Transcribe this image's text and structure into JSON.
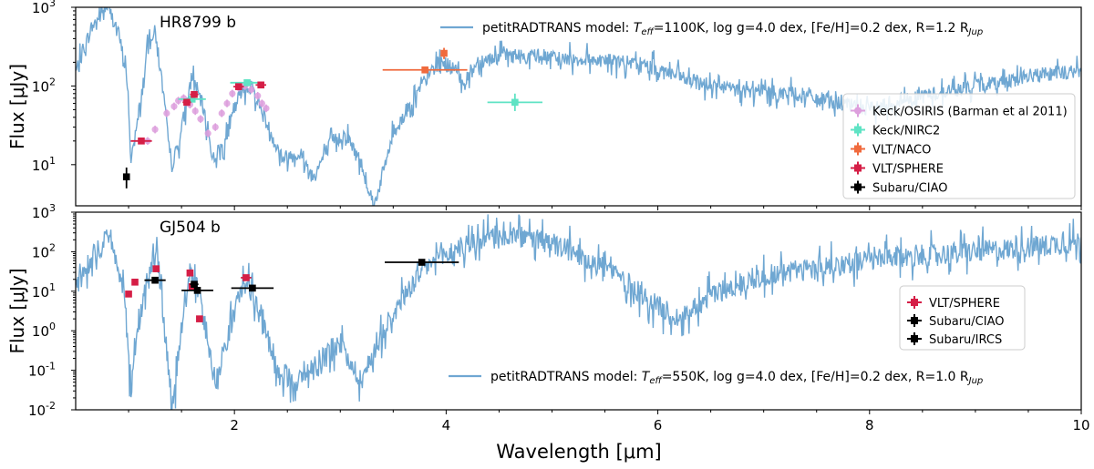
{
  "figure": {
    "xlabel": "Wavelength [μm]"
  },
  "colors": {
    "model": "#6fa7d2",
    "keck_osiris": "#dd9fdd",
    "keck_nirc2": "#5fe3c4",
    "vlt_naco": "#f06a3d",
    "vlt_sphere": "#d51e46",
    "subaru": "#000000"
  },
  "chart_data": [
    {
      "type": "line",
      "title": "HR8799 b",
      "xlabel": "Wavelength [μm]",
      "ylabel": "Flux [μJy]",
      "yscale": "log",
      "xlim": [
        0.5,
        10
      ],
      "ylim": [
        3,
        1000
      ],
      "x_ticks": [
        2,
        4,
        6,
        8,
        10
      ],
      "y_ticks": [
        "10^1",
        "10^2",
        "10^3"
      ],
      "legend_position": "right",
      "model": {
        "label_prefix": "petitRADTRANS model:",
        "label_math": "T_eff=1100K",
        "label_rest": ", log g=4.0 dex, [Fe/H]=0.2 dex, R=1.2 R",
        "label_sub": "Jup",
        "spectrum": [
          [
            0.5,
            150
          ],
          [
            0.65,
            550
          ],
          [
            0.8,
            1050
          ],
          [
            0.9,
            500
          ],
          [
            0.98,
            150
          ],
          [
            1.02,
            12
          ],
          [
            1.08,
            30
          ],
          [
            1.2,
            450
          ],
          [
            1.25,
            480
          ],
          [
            1.33,
            80
          ],
          [
            1.4,
            9
          ],
          [
            1.48,
            20
          ],
          [
            1.6,
            140
          ],
          [
            1.7,
            55
          ],
          [
            1.8,
            12
          ],
          [
            1.9,
            18
          ],
          [
            2.05,
            80
          ],
          [
            2.15,
            110
          ],
          [
            2.28,
            40
          ],
          [
            2.45,
            12
          ],
          [
            2.6,
            14
          ],
          [
            2.75,
            7
          ],
          [
            2.9,
            18
          ],
          [
            3.05,
            25
          ],
          [
            3.2,
            10
          ],
          [
            3.32,
            3
          ],
          [
            3.5,
            25
          ],
          [
            3.7,
            70
          ],
          [
            3.85,
            150
          ],
          [
            3.95,
            210
          ],
          [
            4.08,
            160
          ],
          [
            4.18,
            110
          ],
          [
            4.3,
            210
          ],
          [
            4.6,
            245
          ],
          [
            5.0,
            225
          ],
          [
            5.5,
            215
          ],
          [
            6.0,
            170
          ],
          [
            6.3,
            115
          ],
          [
            6.8,
            85
          ],
          [
            7.3,
            80
          ],
          [
            7.7,
            60
          ],
          [
            8.0,
            50
          ],
          [
            8.4,
            70
          ],
          [
            9.0,
            100
          ],
          [
            9.6,
            140
          ],
          [
            10.0,
            155
          ]
        ],
        "noise_dex": 0.12
      },
      "series": [
        {
          "name": "Keck/OSIRIS (Barman et al 2011)",
          "color_key": "keck_osiris",
          "points": [
            [
              1.18,
              20
            ],
            [
              1.25,
              28
            ],
            [
              1.36,
              45
            ],
            [
              1.43,
              55
            ],
            [
              1.47,
              65
            ],
            [
              1.52,
              70
            ],
            [
              1.58,
              58
            ],
            [
              1.63,
              48
            ],
            [
              1.68,
              38
            ],
            [
              1.75,
              25
            ],
            [
              1.82,
              30
            ],
            [
              1.88,
              45
            ],
            [
              1.93,
              60
            ],
            [
              1.98,
              80
            ],
            [
              2.04,
              95
            ],
            [
              2.1,
              100
            ],
            [
              2.16,
              90
            ],
            [
              2.22,
              75
            ],
            [
              2.26,
              60
            ],
            [
              2.3,
              52
            ]
          ]
        },
        {
          "name": "Keck/NIRC2",
          "color_key": "keck_nirc2",
          "points": [
            {
              "x": 1.6,
              "y": 68,
              "xerr": 0.13
            },
            {
              "x": 2.12,
              "y": 110,
              "xerr": 0.16
            },
            {
              "x": 4.65,
              "y": 62,
              "xerr": 0.26,
              "ylo": 48,
              "yhi": 80
            }
          ]
        },
        {
          "name": "VLT/NACO",
          "color_key": "vlt_naco",
          "points": [
            {
              "x": 3.8,
              "y": 160,
              "xerr": 0.4
            },
            {
              "x": 3.98,
              "y": 260,
              "xerr": 0.03,
              "ylo": 220,
              "yhi": 305
            }
          ]
        },
        {
          "name": "VLT/SPHERE",
          "color_key": "vlt_sphere",
          "points": [
            {
              "x": 1.12,
              "y": 20,
              "xerr": 0.1
            },
            {
              "x": 1.55,
              "y": 62,
              "xerr": 0.04
            },
            {
              "x": 1.62,
              "y": 78,
              "xerr": 0.04
            },
            {
              "x": 2.04,
              "y": 98,
              "xerr": 0.05
            },
            {
              "x": 2.25,
              "y": 103,
              "xerr": 0.05
            }
          ]
        },
        {
          "name": "Subaru/CIAO",
          "color_key": "subaru",
          "points": [
            {
              "x": 0.98,
              "y": 7,
              "xerr": 0.0,
              "ylo": 5,
              "yhi": 9.2
            }
          ]
        }
      ],
      "legend": [
        "Keck/OSIRIS (Barman et al 2011)",
        "Keck/NIRC2",
        "VLT/NACO",
        "VLT/SPHERE",
        "Subaru/CIAO"
      ]
    },
    {
      "type": "line",
      "title": "GJ504 b",
      "xlabel": "Wavelength [μm]",
      "ylabel": "Flux [μJy]",
      "yscale": "log",
      "xlim": [
        0.5,
        10
      ],
      "ylim": [
        0.01,
        1000
      ],
      "x_ticks": [
        2,
        4,
        6,
        8,
        10
      ],
      "y_ticks": [
        "10^-2",
        "10^-1",
        "10^0",
        "10^1",
        "10^2",
        "10^3"
      ],
      "legend_position": "right",
      "model": {
        "label_prefix": "petitRADTRANS model:",
        "label_math": "T_eff=550K",
        "label_rest": ", log g=4.0 dex, [Fe/H]=0.2 dex, R=1.0 R",
        "label_sub": "Jup",
        "spectrum": [
          [
            0.5,
            12
          ],
          [
            0.65,
            80
          ],
          [
            0.8,
            200
          ],
          [
            0.9,
            60
          ],
          [
            0.98,
            3
          ],
          [
            1.02,
            0.02
          ],
          [
            1.08,
            1
          ],
          [
            1.2,
            40
          ],
          [
            1.27,
            80
          ],
          [
            1.35,
            0.5
          ],
          [
            1.42,
            0.01
          ],
          [
            1.48,
            0.5
          ],
          [
            1.58,
            30
          ],
          [
            1.65,
            12
          ],
          [
            1.72,
            1.5
          ],
          [
            1.82,
            0.05
          ],
          [
            1.95,
            1
          ],
          [
            2.08,
            15
          ],
          [
            2.15,
            12
          ],
          [
            2.25,
            2
          ],
          [
            2.4,
            0.1
          ],
          [
            2.6,
            0.05
          ],
          [
            2.8,
            0.2
          ],
          [
            3.0,
            0.5
          ],
          [
            3.2,
            0.05
          ],
          [
            3.35,
            0.5
          ],
          [
            3.5,
            3
          ],
          [
            3.8,
            40
          ],
          [
            4.1,
            120
          ],
          [
            4.5,
            260
          ],
          [
            4.8,
            220
          ],
          [
            5.2,
            100
          ],
          [
            5.6,
            30
          ],
          [
            5.9,
            6
          ],
          [
            6.2,
            2
          ],
          [
            6.5,
            8
          ],
          [
            7.0,
            25
          ],
          [
            7.5,
            40
          ],
          [
            8.0,
            60
          ],
          [
            8.5,
            80
          ],
          [
            9.0,
            100
          ],
          [
            9.5,
            130
          ],
          [
            10.0,
            180
          ]
        ],
        "noise_dex": 0.35
      },
      "series": [
        {
          "name": "VLT/SPHERE",
          "color_key": "vlt_sphere",
          "points": [
            {
              "x": 1.0,
              "y": 8.5,
              "xerr": 0.0
            },
            {
              "x": 1.06,
              "y": 17,
              "xerr": 0.0
            },
            {
              "x": 1.26,
              "y": 37,
              "xerr": 0.0
            },
            {
              "x": 1.58,
              "y": 29,
              "xerr": 0.0
            },
            {
              "x": 1.6,
              "y": 13,
              "xerr": 0.0
            },
            {
              "x": 1.67,
              "y": 2,
              "xerr": 0.0
            },
            {
              "x": 2.11,
              "y": 22,
              "xerr": 0.05
            }
          ]
        },
        {
          "name": "Subaru/CIAO",
          "color_key": "subaru",
          "points": [
            {
              "x": 1.25,
              "y": 19,
              "xerr": 0.1
            },
            {
              "x": 1.62,
              "y": 15,
              "xerr": 0.04
            }
          ]
        },
        {
          "name": "Subaru/IRCS",
          "color_key": "subaru",
          "points": [
            {
              "x": 1.65,
              "y": 10.5,
              "xerr": 0.15
            },
            {
              "x": 2.17,
              "y": 12,
              "xerr": 0.2
            },
            {
              "x": 3.77,
              "y": 54,
              "xerr": 0.35
            }
          ]
        }
      ],
      "legend": [
        "VLT/SPHERE",
        "Subaru/CIAO",
        "Subaru/IRCS"
      ]
    }
  ]
}
